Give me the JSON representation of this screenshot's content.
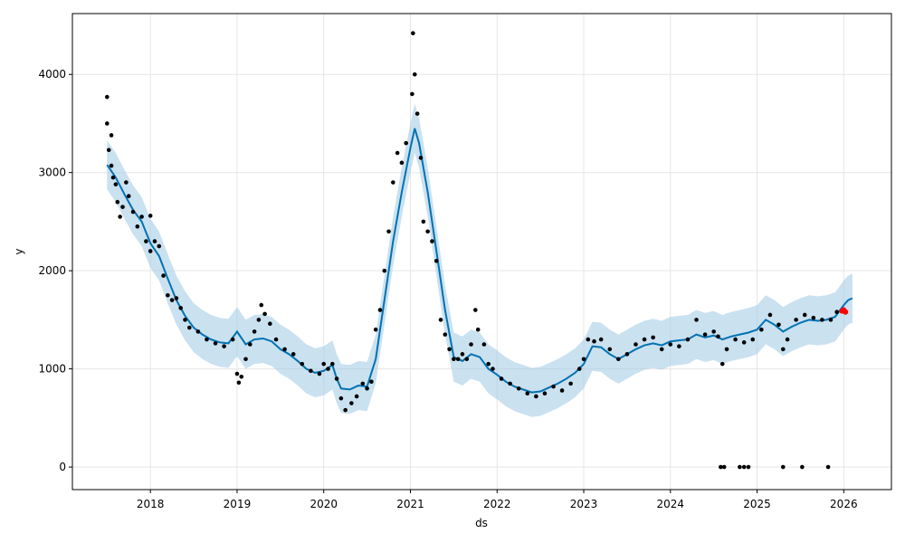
{
  "chart_data": {
    "type": "scatter",
    "xlabel": "ds",
    "ylabel": "y",
    "x_ticks": [
      "2018",
      "2019",
      "2020",
      "2021",
      "2022",
      "2023",
      "2024",
      "2025",
      "2026"
    ],
    "y_ticks": [
      "0",
      "1000",
      "2000",
      "3000",
      "4000"
    ],
    "xlim": [
      2017.1,
      2026.55
    ],
    "ylim": [
      -230,
      4620
    ],
    "grid": true,
    "colors": {
      "observed": "#000000",
      "forecast": "#0072B2",
      "interval": "#a6cde6",
      "highlight": "#ff0000"
    },
    "series": [
      {
        "role": "observed",
        "points": [
          [
            2017.5,
            3770
          ],
          [
            2017.5,
            3500
          ],
          [
            2017.52,
            3230
          ],
          [
            2017.55,
            3380
          ],
          [
            2017.55,
            3070
          ],
          [
            2017.57,
            2950
          ],
          [
            2017.6,
            2880
          ],
          [
            2017.62,
            2700
          ],
          [
            2017.65,
            2550
          ],
          [
            2017.68,
            2650
          ],
          [
            2017.72,
            2900
          ],
          [
            2017.75,
            2760
          ],
          [
            2017.8,
            2600
          ],
          [
            2017.85,
            2450
          ],
          [
            2017.9,
            2550
          ],
          [
            2017.95,
            2300
          ],
          [
            2018.0,
            2200
          ],
          [
            2018.0,
            2560
          ],
          [
            2018.05,
            2300
          ],
          [
            2018.1,
            2250
          ],
          [
            2018.15,
            1950
          ],
          [
            2018.2,
            1750
          ],
          [
            2018.25,
            1700
          ],
          [
            2018.3,
            1720
          ],
          [
            2018.35,
            1620
          ],
          [
            2018.4,
            1500
          ],
          [
            2018.45,
            1420
          ],
          [
            2018.55,
            1380
          ],
          [
            2018.65,
            1300
          ],
          [
            2018.75,
            1260
          ],
          [
            2018.85,
            1230
          ],
          [
            2018.95,
            1300
          ],
          [
            2019.0,
            950
          ],
          [
            2019.02,
            860
          ],
          [
            2019.05,
            920
          ],
          [
            2019.1,
            1100
          ],
          [
            2019.15,
            1250
          ],
          [
            2019.2,
            1380
          ],
          [
            2019.25,
            1500
          ],
          [
            2019.28,
            1650
          ],
          [
            2019.32,
            1560
          ],
          [
            2019.38,
            1460
          ],
          [
            2019.45,
            1300
          ],
          [
            2019.55,
            1200
          ],
          [
            2019.65,
            1150
          ],
          [
            2019.75,
            1050
          ],
          [
            2019.85,
            980
          ],
          [
            2019.95,
            950
          ],
          [
            2020.0,
            1050
          ],
          [
            2020.05,
            1000
          ],
          [
            2020.1,
            1050
          ],
          [
            2020.15,
            900
          ],
          [
            2020.2,
            700
          ],
          [
            2020.25,
            580
          ],
          [
            2020.32,
            650
          ],
          [
            2020.38,
            720
          ],
          [
            2020.45,
            850
          ],
          [
            2020.5,
            800
          ],
          [
            2020.55,
            870
          ],
          [
            2020.6,
            1400
          ],
          [
            2020.65,
            1600
          ],
          [
            2020.7,
            2000
          ],
          [
            2020.75,
            2400
          ],
          [
            2020.8,
            2900
          ],
          [
            2020.85,
            3200
          ],
          [
            2020.9,
            3100
          ],
          [
            2020.95,
            3300
          ],
          [
            2021.02,
            3800
          ],
          [
            2021.03,
            4420
          ],
          [
            2021.05,
            4000
          ],
          [
            2021.08,
            3600
          ],
          [
            2021.12,
            3150
          ],
          [
            2021.15,
            2500
          ],
          [
            2021.2,
            2400
          ],
          [
            2021.25,
            2300
          ],
          [
            2021.3,
            2100
          ],
          [
            2021.35,
            1500
          ],
          [
            2021.4,
            1350
          ],
          [
            2021.45,
            1200
          ],
          [
            2021.5,
            1100
          ],
          [
            2021.55,
            1100
          ],
          [
            2021.6,
            1150
          ],
          [
            2021.65,
            1100
          ],
          [
            2021.7,
            1250
          ],
          [
            2021.75,
            1600
          ],
          [
            2021.78,
            1400
          ],
          [
            2021.85,
            1250
          ],
          [
            2021.9,
            1050
          ],
          [
            2021.95,
            1000
          ],
          [
            2022.05,
            900
          ],
          [
            2022.15,
            850
          ],
          [
            2022.25,
            800
          ],
          [
            2022.35,
            750
          ],
          [
            2022.45,
            720
          ],
          [
            2022.55,
            750
          ],
          [
            2022.65,
            820
          ],
          [
            2022.75,
            780
          ],
          [
            2022.85,
            850
          ],
          [
            2022.95,
            1000
          ],
          [
            2023.0,
            1100
          ],
          [
            2023.05,
            1300
          ],
          [
            2023.12,
            1280
          ],
          [
            2023.2,
            1300
          ],
          [
            2023.3,
            1200
          ],
          [
            2023.4,
            1100
          ],
          [
            2023.5,
            1150
          ],
          [
            2023.6,
            1250
          ],
          [
            2023.7,
            1300
          ],
          [
            2023.8,
            1320
          ],
          [
            2023.9,
            1200
          ],
          [
            2024.0,
            1250
          ],
          [
            2024.1,
            1230
          ],
          [
            2024.2,
            1300
          ],
          [
            2024.3,
            1500
          ],
          [
            2024.4,
            1350
          ],
          [
            2024.5,
            1380
          ],
          [
            2024.55,
            1330
          ],
          [
            2024.6,
            1050
          ],
          [
            2024.65,
            1200
          ],
          [
            2024.75,
            1300
          ],
          [
            2024.85,
            1270
          ],
          [
            2024.95,
            1300
          ],
          [
            2025.05,
            1400
          ],
          [
            2025.15,
            1550
          ],
          [
            2025.25,
            1450
          ],
          [
            2025.3,
            1200
          ],
          [
            2025.35,
            1300
          ],
          [
            2025.45,
            1500
          ],
          [
            2025.55,
            1550
          ],
          [
            2025.65,
            1520
          ],
          [
            2025.75,
            1500
          ],
          [
            2025.85,
            1500
          ],
          [
            2025.92,
            1580
          ],
          [
            2024.58,
            0
          ],
          [
            2024.62,
            0
          ],
          [
            2024.8,
            0
          ],
          [
            2024.85,
            0
          ],
          [
            2024.9,
            0
          ],
          [
            2025.3,
            0
          ],
          [
            2025.52,
            0
          ],
          [
            2025.82,
            0
          ]
        ]
      },
      {
        "role": "forecast",
        "points": [
          [
            2017.5,
            3080
          ],
          [
            2017.6,
            2950
          ],
          [
            2017.7,
            2780
          ],
          [
            2017.8,
            2620
          ],
          [
            2017.9,
            2500
          ],
          [
            2018.0,
            2280
          ],
          [
            2018.1,
            2150
          ],
          [
            2018.2,
            1920
          ],
          [
            2018.3,
            1700
          ],
          [
            2018.4,
            1540
          ],
          [
            2018.5,
            1420
          ],
          [
            2018.6,
            1350
          ],
          [
            2018.7,
            1300
          ],
          [
            2018.8,
            1270
          ],
          [
            2018.9,
            1260
          ],
          [
            2019.0,
            1380
          ],
          [
            2019.1,
            1250
          ],
          [
            2019.2,
            1300
          ],
          [
            2019.3,
            1310
          ],
          [
            2019.4,
            1280
          ],
          [
            2019.5,
            1200
          ],
          [
            2019.6,
            1150
          ],
          [
            2019.7,
            1080
          ],
          [
            2019.8,
            1000
          ],
          [
            2019.9,
            960
          ],
          [
            2020.0,
            980
          ],
          [
            2020.1,
            1040
          ],
          [
            2020.15,
            900
          ],
          [
            2020.2,
            800
          ],
          [
            2020.3,
            790
          ],
          [
            2020.4,
            830
          ],
          [
            2020.5,
            820
          ],
          [
            2020.6,
            1100
          ],
          [
            2020.7,
            1700
          ],
          [
            2020.8,
            2300
          ],
          [
            2020.9,
            2800
          ],
          [
            2021.0,
            3250
          ],
          [
            2021.05,
            3450
          ],
          [
            2021.1,
            3300
          ],
          [
            2021.2,
            2800
          ],
          [
            2021.3,
            2200
          ],
          [
            2021.4,
            1600
          ],
          [
            2021.5,
            1120
          ],
          [
            2021.6,
            1080
          ],
          [
            2021.7,
            1150
          ],
          [
            2021.8,
            1120
          ],
          [
            2021.9,
            1000
          ],
          [
            2022.0,
            940
          ],
          [
            2022.1,
            870
          ],
          [
            2022.2,
            820
          ],
          [
            2022.3,
            790
          ],
          [
            2022.4,
            760
          ],
          [
            2022.5,
            770
          ],
          [
            2022.6,
            810
          ],
          [
            2022.7,
            850
          ],
          [
            2022.8,
            900
          ],
          [
            2022.9,
            960
          ],
          [
            2023.0,
            1050
          ],
          [
            2023.1,
            1230
          ],
          [
            2023.2,
            1220
          ],
          [
            2023.3,
            1150
          ],
          [
            2023.4,
            1100
          ],
          [
            2023.5,
            1150
          ],
          [
            2023.6,
            1200
          ],
          [
            2023.7,
            1240
          ],
          [
            2023.8,
            1260
          ],
          [
            2023.9,
            1240
          ],
          [
            2024.0,
            1280
          ],
          [
            2024.1,
            1290
          ],
          [
            2024.2,
            1300
          ],
          [
            2024.3,
            1350
          ],
          [
            2024.4,
            1320
          ],
          [
            2024.5,
            1340
          ],
          [
            2024.6,
            1300
          ],
          [
            2024.7,
            1330
          ],
          [
            2024.8,
            1350
          ],
          [
            2024.9,
            1370
          ],
          [
            2025.0,
            1400
          ],
          [
            2025.1,
            1500
          ],
          [
            2025.2,
            1450
          ],
          [
            2025.3,
            1380
          ],
          [
            2025.4,
            1430
          ],
          [
            2025.5,
            1470
          ],
          [
            2025.6,
            1500
          ],
          [
            2025.7,
            1490
          ],
          [
            2025.8,
            1500
          ],
          [
            2025.9,
            1530
          ],
          [
            2026.0,
            1650
          ],
          [
            2026.05,
            1700
          ],
          [
            2026.1,
            1720
          ]
        ],
        "band": 250
      },
      {
        "role": "highlight",
        "points": [
          [
            2025.98,
            1590
          ],
          [
            2026.0,
            1600
          ],
          [
            2026.02,
            1580
          ]
        ]
      }
    ]
  }
}
